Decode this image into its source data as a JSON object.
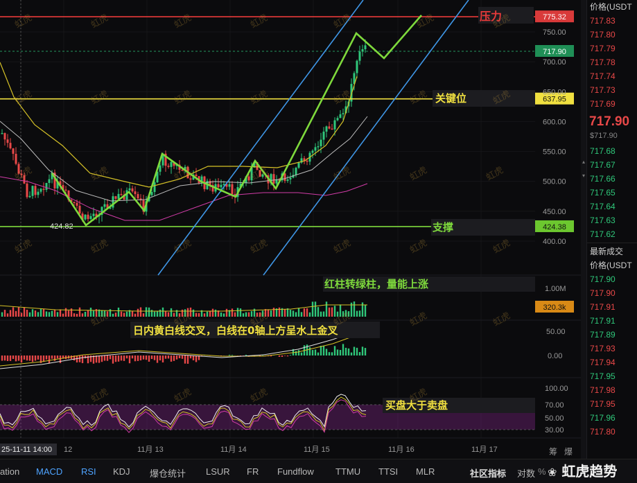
{
  "chart_data": {
    "type": "candlestick",
    "price_axis_ticks": [
      "750.00",
      "700.00",
      "650.00",
      "600.00",
      "550.00",
      "500.00",
      "450.00",
      "400.00"
    ],
    "volume_axis_ticks": [
      "1.00M"
    ],
    "macd_axis_ticks": [
      "50.00",
      "0.00"
    ],
    "rsi_axis_ticks": [
      "100.00",
      "70.00",
      "50.00",
      "30.00"
    ],
    "time_ticks": [
      "25-11-11 14:00",
      "12",
      "11月 13",
      "11月 14",
      "11月 15",
      "11月 16",
      "11月 17"
    ],
    "resistance": {
      "label": "压力",
      "value": 775.32,
      "tag": "775.32"
    },
    "key_level": {
      "label": "关键位",
      "value": 637.95,
      "tag": "637.95"
    },
    "support": {
      "label": "支撑",
      "value": 424.38,
      "tag": "424.38"
    },
    "last_price_tag": "717.90",
    "low_marker": "424.82",
    "volume_tag": "320.3k",
    "annotations": {
      "volume": "红柱转绿柱，量能上涨",
      "macd": "日内黄白线交叉，白线在0轴上方呈水上金叉",
      "rsi": "买盘大于卖盘"
    },
    "colors": {
      "up": "#2fc77a",
      "down": "#e84848",
      "resistance": "#e83a3a",
      "key": "#f0e040",
      "support": "#7ed93c",
      "channel": "#3f96e6",
      "pattern": "#7ed93c"
    }
  },
  "order_book": {
    "header": "价格(USDT",
    "asks": [
      "717.83",
      "717.80",
      "717.79",
      "717.78",
      "717.74",
      "717.73",
      "717.69"
    ],
    "last_price": "717.90",
    "last_price_sub": "$717.90",
    "bids": [
      "717.68",
      "717.67",
      "717.66",
      "717.65",
      "717.64",
      "717.63",
      "717.62"
    ]
  },
  "trades": {
    "title": "最新成交",
    "header": "价格(USDT",
    "rows": [
      {
        "p": "717.90",
        "c": "rp-green"
      },
      {
        "p": "717.90",
        "c": "rp-red"
      },
      {
        "p": "717.91",
        "c": "rp-red"
      },
      {
        "p": "717.91",
        "c": "rp-green"
      },
      {
        "p": "717.89",
        "c": "rp-green"
      },
      {
        "p": "717.93",
        "c": "rp-red"
      },
      {
        "p": "717.94",
        "c": "rp-red"
      },
      {
        "p": "717.95",
        "c": "rp-green"
      },
      {
        "p": "717.98",
        "c": "rp-red"
      },
      {
        "p": "717.95",
        "c": "rp-red"
      },
      {
        "p": "717.96",
        "c": "rp-green"
      },
      {
        "p": "717.80",
        "c": "rp-red"
      }
    ]
  },
  "bottom_tabs": [
    "ation",
    "MACD",
    "RSI",
    "KDJ",
    "爆仓统计",
    "LSUR",
    "FR",
    "Fundflow",
    "TTMU",
    "TTSI",
    "MLR"
  ],
  "bottom_right": {
    "community": "社区指标",
    "more": "对数",
    "pct": "%",
    "chips": "筹",
    "burst": "爆"
  },
  "brand": "虹虎趋势",
  "watermark": "虹虎"
}
